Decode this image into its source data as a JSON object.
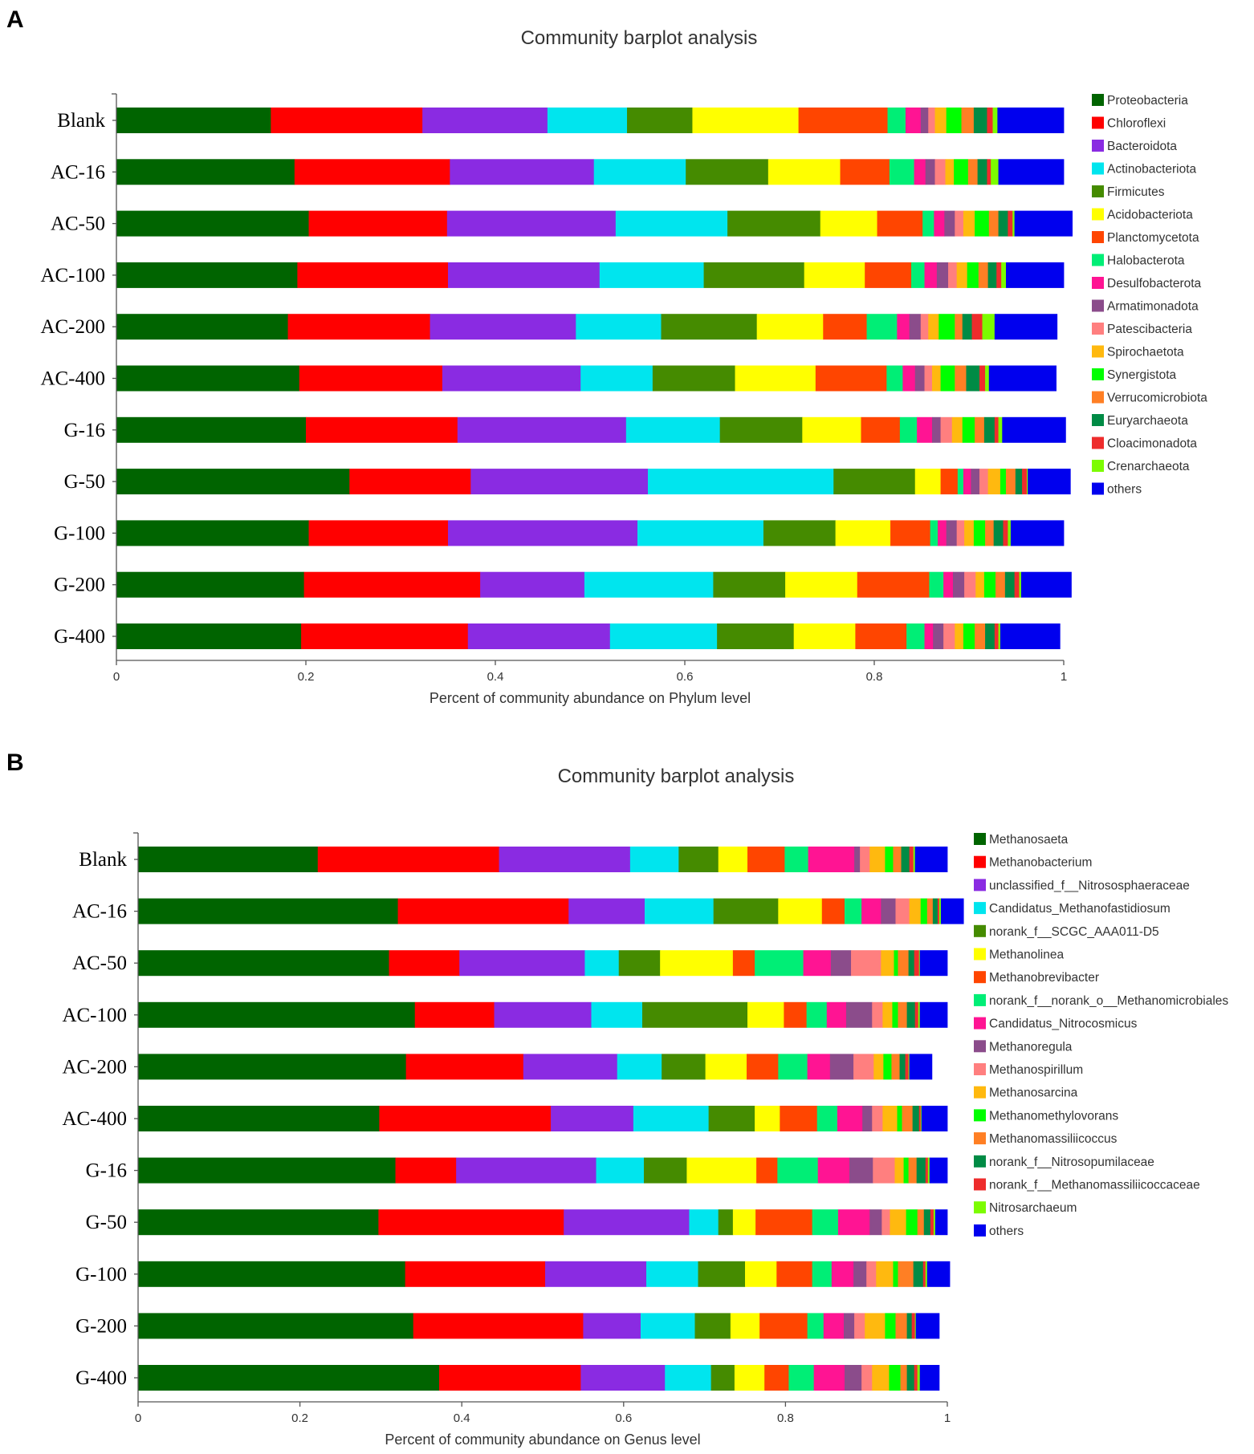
{
  "chart_data": [
    {
      "panel": "A",
      "type": "bar",
      "orientation": "horizontal",
      "stacked": true,
      "title": "Community barplot analysis",
      "xlabel": "Percent of community abundance on Phylum level",
      "ylabel": "",
      "xlim": [
        0,
        1
      ],
      "xticks": [
        "0",
        "0.2",
        "0.4",
        "0.6",
        "0.8",
        "1"
      ],
      "legend_position": "right",
      "categories": [
        "Blank",
        "AC-16",
        "AC-50",
        "AC-100",
        "AC-200",
        "AC-400",
        "G-16",
        "G-50",
        "G-100",
        "G-200",
        "G-400"
      ],
      "series": [
        {
          "name": "Proteobacteria",
          "color": "#006400",
          "values": [
            0.163,
            0.188,
            0.203,
            0.191,
            0.181,
            0.193,
            0.2,
            0.246,
            0.203,
            0.198,
            0.195
          ]
        },
        {
          "name": "Chloroflexi",
          "color": "#ff0000",
          "values": [
            0.16,
            0.164,
            0.146,
            0.159,
            0.15,
            0.151,
            0.16,
            0.128,
            0.147,
            0.186,
            0.176
          ]
        },
        {
          "name": "Bacteroidota",
          "color": "#8a2be2",
          "values": [
            0.132,
            0.152,
            0.178,
            0.16,
            0.154,
            0.146,
            0.178,
            0.187,
            0.2,
            0.11,
            0.15
          ]
        },
        {
          "name": "Actinobacteriota",
          "color": "#00e5ee",
          "values": [
            0.084,
            0.097,
            0.118,
            0.11,
            0.09,
            0.076,
            0.099,
            0.196,
            0.133,
            0.136,
            0.113
          ]
        },
        {
          "name": "Firmicutes",
          "color": "#458b00",
          "values": [
            0.069,
            0.087,
            0.098,
            0.106,
            0.101,
            0.087,
            0.087,
            0.086,
            0.076,
            0.076,
            0.081
          ]
        },
        {
          "name": "Acidobacteriota",
          "color": "#ffff00",
          "values": [
            0.112,
            0.076,
            0.06,
            0.064,
            0.07,
            0.085,
            0.062,
            0.027,
            0.058,
            0.076,
            0.065
          ]
        },
        {
          "name": "Planctomycetota",
          "color": "#ff4500",
          "values": [
            0.094,
            0.052,
            0.048,
            0.049,
            0.046,
            0.075,
            0.041,
            0.018,
            0.042,
            0.076,
            0.054
          ]
        },
        {
          "name": "Halobacterota",
          "color": "#00ee76",
          "values": [
            0.019,
            0.026,
            0.012,
            0.014,
            0.032,
            0.017,
            0.018,
            0.006,
            0.008,
            0.015,
            0.019
          ]
        },
        {
          "name": "Desulfobacterota",
          "color": "#ff1493",
          "values": [
            0.016,
            0.012,
            0.011,
            0.013,
            0.013,
            0.013,
            0.016,
            0.008,
            0.009,
            0.01,
            0.009
          ]
        },
        {
          "name": "Armatimonadota",
          "color": "#8b4c8b",
          "values": [
            0.008,
            0.01,
            0.011,
            0.012,
            0.012,
            0.01,
            0.009,
            0.009,
            0.011,
            0.012,
            0.011
          ]
        },
        {
          "name": "Patescibacteria",
          "color": "#ff7f7f",
          "values": [
            0.007,
            0.011,
            0.009,
            0.009,
            0.008,
            0.008,
            0.012,
            0.009,
            0.008,
            0.012,
            0.012
          ]
        },
        {
          "name": "Spirochaetota",
          "color": "#ffb90f",
          "values": [
            0.012,
            0.009,
            0.012,
            0.011,
            0.011,
            0.009,
            0.011,
            0.013,
            0.01,
            0.009,
            0.009
          ]
        },
        {
          "name": "Synergistota",
          "color": "#00ff00",
          "values": [
            0.016,
            0.015,
            0.015,
            0.012,
            0.017,
            0.015,
            0.013,
            0.006,
            0.012,
            0.012,
            0.012
          ]
        },
        {
          "name": "Verrucomicrobiota",
          "color": "#ff7f24",
          "values": [
            0.013,
            0.01,
            0.01,
            0.01,
            0.008,
            0.012,
            0.01,
            0.01,
            0.009,
            0.01,
            0.011
          ]
        },
        {
          "name": "Euryarchaeota",
          "color": "#008b45",
          "values": [
            0.014,
            0.01,
            0.01,
            0.009,
            0.01,
            0.014,
            0.011,
            0.007,
            0.01,
            0.01,
            0.01
          ]
        },
        {
          "name": "Cloacimonadota",
          "color": "#ee2c2c",
          "values": [
            0.006,
            0.004,
            0.005,
            0.005,
            0.011,
            0.006,
            0.004,
            0.005,
            0.005,
            0.005,
            0.004
          ]
        },
        {
          "name": "Crenarchaeota",
          "color": "#7cfc00",
          "values": [
            0.005,
            0.008,
            0.002,
            0.005,
            0.013,
            0.004,
            0.004,
            0.001,
            0.003,
            0.002,
            0.002
          ]
        },
        {
          "name": "others",
          "color": "#0000ee",
          "values": [
            0.07,
            0.069,
            0.061,
            0.061,
            0.066,
            0.071,
            0.067,
            0.045,
            0.056,
            0.053,
            0.063
          ]
        }
      ]
    },
    {
      "panel": "B",
      "type": "bar",
      "orientation": "horizontal",
      "stacked": true,
      "title": "Community barplot analysis",
      "xlabel": "Percent of community abundance on Genus level",
      "ylabel": "",
      "xlim": [
        0,
        1
      ],
      "xticks": [
        "0",
        "0.2",
        "0.4",
        "0.6",
        "0.8",
        "1"
      ],
      "legend_position": "right",
      "categories": [
        "Blank",
        "AC-16",
        "AC-50",
        "AC-100",
        "AC-200",
        "AC-400",
        "G-16",
        "G-50",
        "G-100",
        "G-200",
        "G-400"
      ],
      "series": [
        {
          "name": "Methanosaeta",
          "color": "#006400",
          "values": [
            0.222,
            0.321,
            0.31,
            0.342,
            0.331,
            0.298,
            0.318,
            0.297,
            0.33,
            0.34,
            0.372
          ]
        },
        {
          "name": "Methanobacterium",
          "color": "#ff0000",
          "values": [
            0.224,
            0.211,
            0.087,
            0.098,
            0.145,
            0.212,
            0.075,
            0.229,
            0.173,
            0.21,
            0.175
          ]
        },
        {
          "name": "unclassified_f__Nitrososphaeraceae",
          "color": "#8a2be2",
          "values": [
            0.162,
            0.094,
            0.155,
            0.12,
            0.116,
            0.102,
            0.173,
            0.155,
            0.125,
            0.071,
            0.104
          ]
        },
        {
          "name": "Candidatus_Methanofastidiosum",
          "color": "#00e5ee",
          "values": [
            0.06,
            0.085,
            0.042,
            0.063,
            0.055,
            0.093,
            0.059,
            0.036,
            0.064,
            0.067,
            0.057
          ]
        },
        {
          "name": "norank_f__SCGC_AAA011-D5",
          "color": "#458b00",
          "values": [
            0.049,
            0.08,
            0.051,
            0.13,
            0.054,
            0.057,
            0.053,
            0.018,
            0.058,
            0.044,
            0.029
          ]
        },
        {
          "name": "Methanolinea",
          "color": "#ffff00",
          "values": [
            0.036,
            0.054,
            0.09,
            0.045,
            0.051,
            0.031,
            0.086,
            0.028,
            0.039,
            0.036,
            0.037
          ]
        },
        {
          "name": "Methanobrevibacter",
          "color": "#ff4500",
          "values": [
            0.046,
            0.028,
            0.027,
            0.028,
            0.039,
            0.046,
            0.026,
            0.07,
            0.044,
            0.059,
            0.03
          ]
        },
        {
          "name": "norank_f__norank_o__Methanomicrobiales",
          "color": "#00ee76",
          "values": [
            0.029,
            0.021,
            0.06,
            0.025,
            0.036,
            0.025,
            0.05,
            0.032,
            0.024,
            0.02,
            0.031
          ]
        },
        {
          "name": "Candidatus_Nitrocosmicus",
          "color": "#ff1493",
          "values": [
            0.057,
            0.024,
            0.034,
            0.024,
            0.028,
            0.031,
            0.039,
            0.039,
            0.027,
            0.025,
            0.038
          ]
        },
        {
          "name": "Methanoregula",
          "color": "#8b4c8b",
          "values": [
            0.007,
            0.018,
            0.025,
            0.032,
            0.029,
            0.012,
            0.029,
            0.015,
            0.016,
            0.013,
            0.021
          ]
        },
        {
          "name": "Methanospirillum",
          "color": "#ff7f7f",
          "values": [
            0.012,
            0.017,
            0.037,
            0.013,
            0.025,
            0.013,
            0.027,
            0.01,
            0.012,
            0.013,
            0.013
          ]
        },
        {
          "name": "Methanosarcina",
          "color": "#ffb90f",
          "values": [
            0.019,
            0.014,
            0.016,
            0.012,
            0.012,
            0.018,
            0.011,
            0.02,
            0.021,
            0.025,
            0.021
          ]
        },
        {
          "name": "Methanomethylovorans",
          "color": "#00ff00",
          "values": [
            0.01,
            0.008,
            0.005,
            0.007,
            0.01,
            0.006,
            0.006,
            0.014,
            0.006,
            0.013,
            0.014
          ]
        },
        {
          "name": "Methanomassiliicoccus",
          "color": "#ff7f24",
          "values": [
            0.01,
            0.007,
            0.013,
            0.011,
            0.01,
            0.013,
            0.01,
            0.008,
            0.019,
            0.014,
            0.008
          ]
        },
        {
          "name": "norank_f__Nitrosopumilaceae",
          "color": "#008b45",
          "values": [
            0.01,
            0.006,
            0.007,
            0.01,
            0.007,
            0.008,
            0.011,
            0.008,
            0.012,
            0.006,
            0.009
          ]
        },
        {
          "name": "norank_f__Methanomassiliicoccaceae",
          "color": "#ee2c2c",
          "values": [
            0.005,
            0.002,
            0.006,
            0.004,
            0.004,
            0.002,
            0.003,
            0.004,
            0.003,
            0.004,
            0.004
          ]
        },
        {
          "name": "Nitrosarchaeum",
          "color": "#7cfc00",
          "values": [
            0.002,
            0.002,
            0.001,
            0.002,
            0.001,
            0.001,
            0.002,
            0.002,
            0.002,
            0.001,
            0.003
          ]
        },
        {
          "name": "others",
          "color": "#0000ee",
          "values": [
            0.04,
            0.028,
            0.034,
            0.034,
            0.028,
            0.032,
            0.022,
            0.015,
            0.028,
            0.029,
            0.024
          ]
        }
      ]
    }
  ]
}
